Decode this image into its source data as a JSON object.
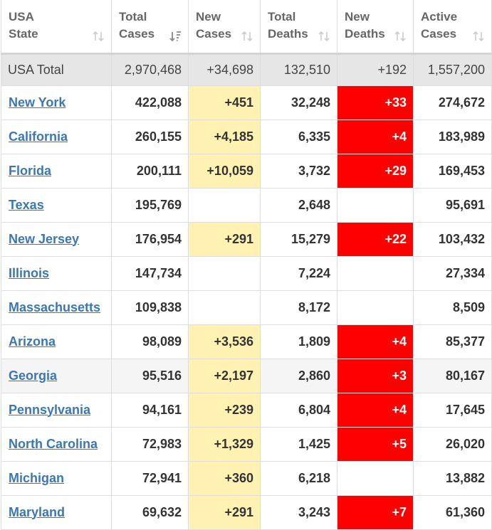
{
  "colors": {
    "header_text": "#666666",
    "link": "#3b77b4",
    "new_cases_highlight": "#fff2b3",
    "new_deaths_highlight": "#ff0000",
    "total_row_bg": "#e6e6e6"
  },
  "table": {
    "headers": [
      {
        "line1": "USA",
        "line2": "State",
        "sort_icon": "sort-icon"
      },
      {
        "line1": "Total",
        "line2": "Cases",
        "sort_icon": "sort-desc-icon"
      },
      {
        "line1": "New",
        "line2": "Cases",
        "sort_icon": "sort-icon"
      },
      {
        "line1": "Total",
        "line2": "Deaths",
        "sort_icon": "sort-icon"
      },
      {
        "line1": "New",
        "line2": "Deaths",
        "sort_icon": "sort-icon"
      },
      {
        "line1": "Active",
        "line2": "Cases",
        "sort_icon": "sort-icon"
      }
    ],
    "total_row": {
      "state": "USA Total",
      "total_cases": "2,970,468",
      "new_cases": "+34,698",
      "total_deaths": "132,510",
      "new_deaths": "+192",
      "active_cases": "1,557,200"
    },
    "rows": [
      {
        "state": "New York",
        "total_cases": "422,088",
        "new_cases": "+451",
        "total_deaths": "32,248",
        "new_deaths": "+33",
        "active_cases": "274,672"
      },
      {
        "state": "California",
        "total_cases": "260,155",
        "new_cases": "+4,185",
        "total_deaths": "6,335",
        "new_deaths": "+4",
        "active_cases": "183,989"
      },
      {
        "state": "Florida",
        "total_cases": "200,111",
        "new_cases": "+10,059",
        "total_deaths": "3,732",
        "new_deaths": "+29",
        "active_cases": "169,453"
      },
      {
        "state": "Texas",
        "total_cases": "195,769",
        "new_cases": "",
        "total_deaths": "2,648",
        "new_deaths": "",
        "active_cases": "95,691"
      },
      {
        "state": "New Jersey",
        "total_cases": "176,954",
        "new_cases": "+291",
        "total_deaths": "15,279",
        "new_deaths": "+22",
        "active_cases": "103,432"
      },
      {
        "state": "Illinois",
        "total_cases": "147,734",
        "new_cases": "",
        "total_deaths": "7,224",
        "new_deaths": "",
        "active_cases": "27,334"
      },
      {
        "state": "Massachusetts",
        "total_cases": "109,838",
        "new_cases": "",
        "total_deaths": "8,172",
        "new_deaths": "",
        "active_cases": "8,509"
      },
      {
        "state": "Arizona",
        "total_cases": "98,089",
        "new_cases": "+3,536",
        "total_deaths": "1,809",
        "new_deaths": "+4",
        "active_cases": "85,377"
      },
      {
        "state": "Georgia",
        "total_cases": "95,516",
        "new_cases": "+2,197",
        "total_deaths": "2,860",
        "new_deaths": "+3",
        "active_cases": "80,167",
        "hovered": true
      },
      {
        "state": "Pennsylvania",
        "total_cases": "94,161",
        "new_cases": "+239",
        "total_deaths": "6,804",
        "new_deaths": "+4",
        "active_cases": "17,645"
      },
      {
        "state": "North Carolina",
        "total_cases": "72,983",
        "new_cases": "+1,329",
        "total_deaths": "1,425",
        "new_deaths": "+5",
        "active_cases": "26,020"
      },
      {
        "state": "Michigan",
        "total_cases": "72,941",
        "new_cases": "+360",
        "total_deaths": "6,218",
        "new_deaths": "",
        "active_cases": "13,882"
      },
      {
        "state": "Maryland",
        "total_cases": "69,632",
        "new_cases": "+291",
        "total_deaths": "3,243",
        "new_deaths": "+7",
        "active_cases": "61,360"
      }
    ]
  }
}
